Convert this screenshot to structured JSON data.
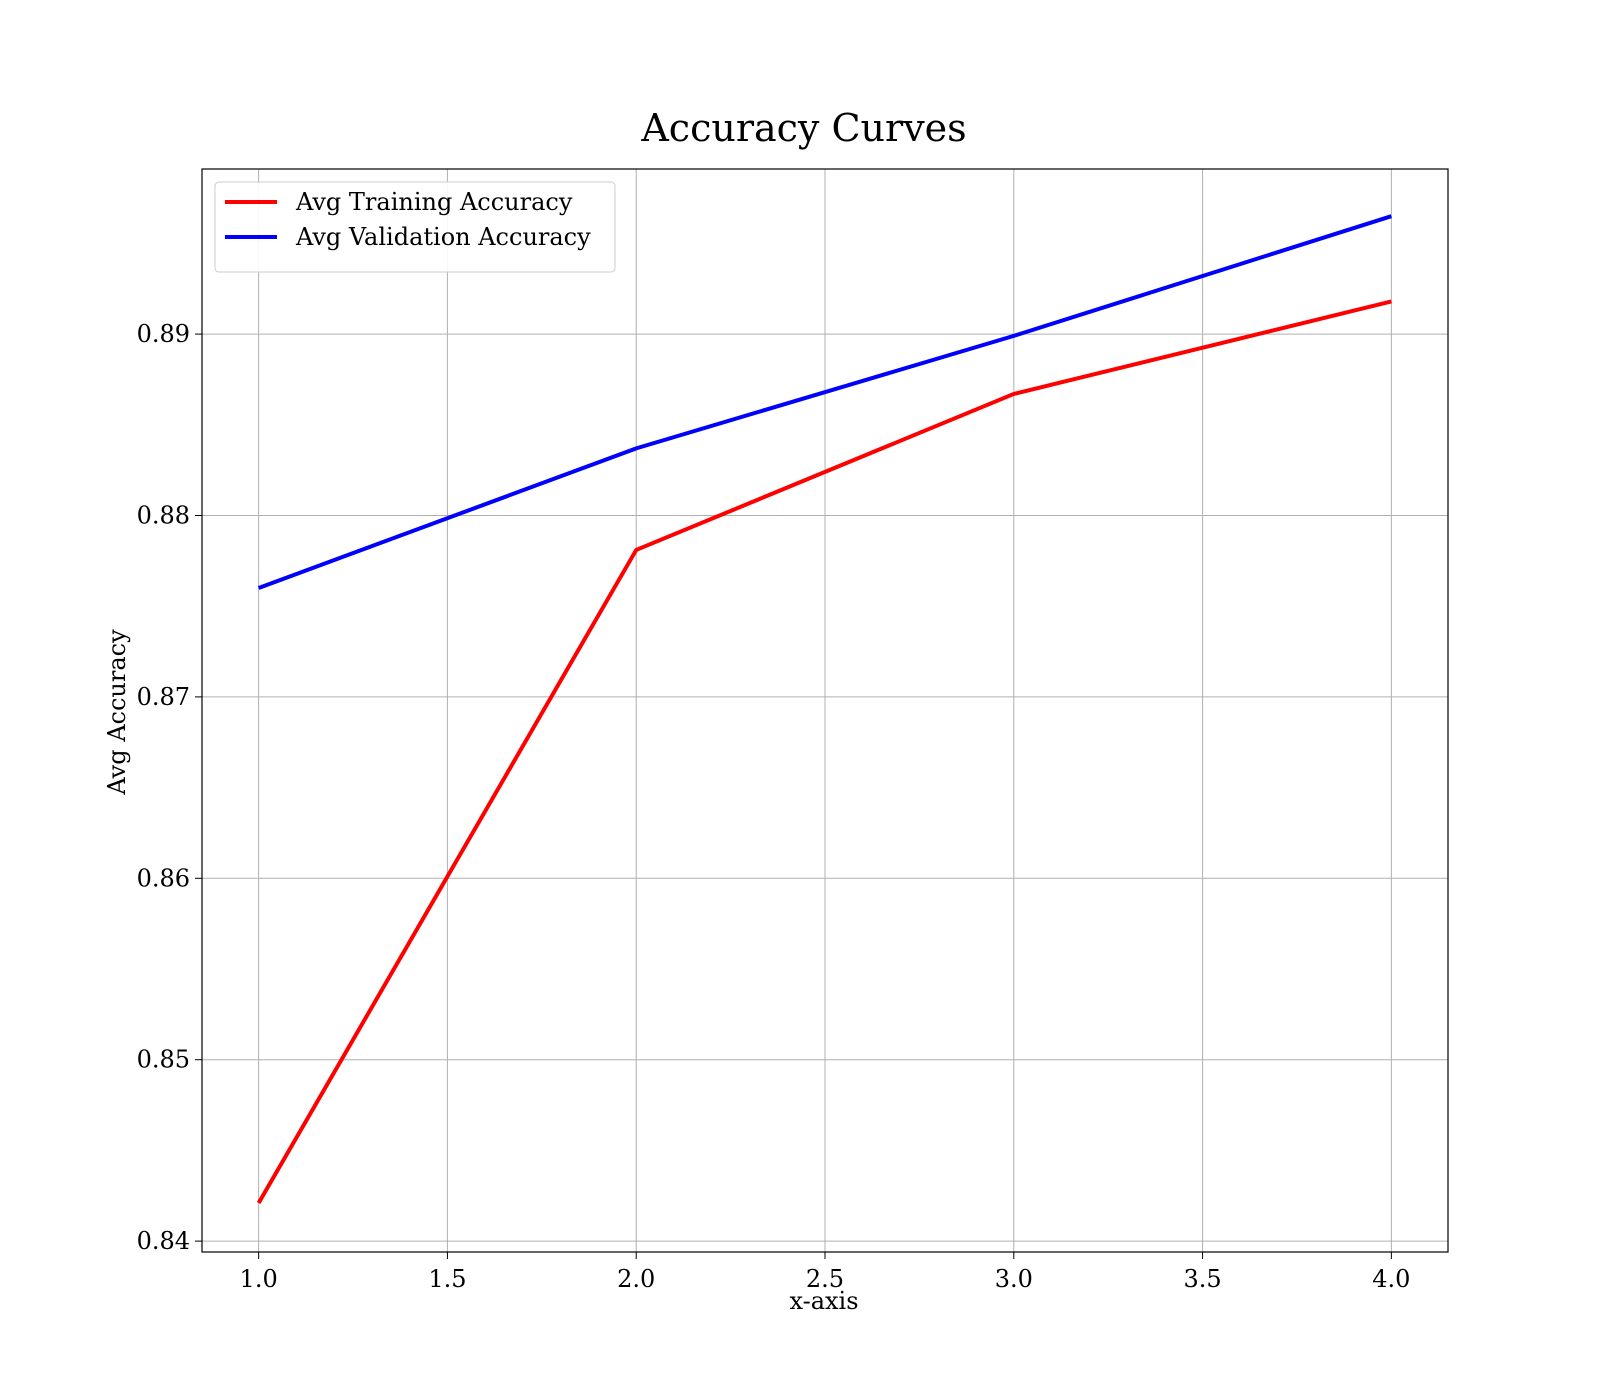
{
  "chart_data": {
    "type": "line",
    "title": "Accuracy Curves",
    "xlabel": "x-axis",
    "ylabel": "Avg Accuracy",
    "x": [
      1.0,
      2.0,
      3.0,
      4.0
    ],
    "xlim": [
      0.85,
      4.15
    ],
    "ylim": [
      0.8394,
      0.8991
    ],
    "xticks": [
      1.0,
      1.5,
      2.0,
      2.5,
      3.0,
      3.5,
      4.0
    ],
    "xtick_labels": [
      "1.0",
      "1.5",
      "2.0",
      "2.5",
      "3.0",
      "3.5",
      "4.0"
    ],
    "yticks": [
      0.84,
      0.85,
      0.86,
      0.87,
      0.88,
      0.89
    ],
    "ytick_labels": [
      "0.84",
      "0.85",
      "0.86",
      "0.87",
      "0.88",
      "0.89"
    ],
    "grid": true,
    "legend_position": "top-left",
    "series": [
      {
        "name": "Avg Training Accuracy",
        "color": "#ff0000",
        "values": [
          0.8421,
          0.8781,
          0.8867,
          0.8918
        ]
      },
      {
        "name": "Avg Validation Accuracy",
        "color": "#0000ff",
        "values": [
          0.876,
          0.8837,
          0.8899,
          0.8965
        ]
      }
    ]
  }
}
